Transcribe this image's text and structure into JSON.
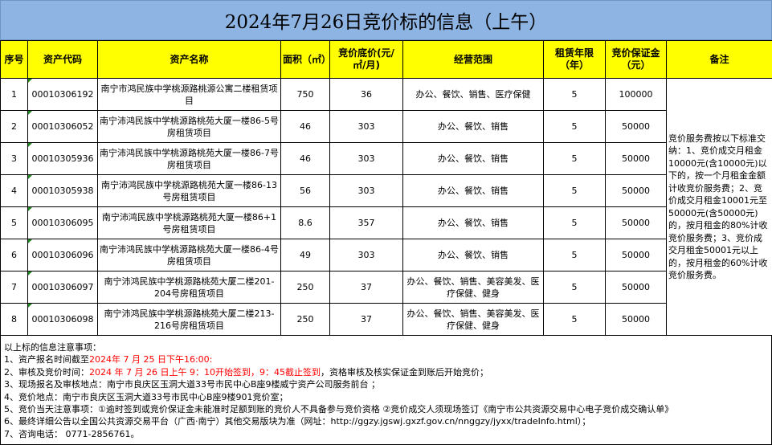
{
  "title": "2024年7月26日竞价标的信息（上午）",
  "headers": [
    "序号",
    "资产代码",
    "资产名称",
    "面积（㎡）",
    "竞价底价(元/㎡/月)",
    "经营范围",
    "租赁年限（年）",
    "竞价保证金（元）",
    "备注"
  ],
  "rows": [
    {
      "no": "1",
      "code": "00010306192",
      "name": "南宁市鸿民族中学桃源路桃源公寓二楼租赁项目",
      "area": "750",
      "price": "36",
      "scope": "办公、餐饮、销售、医疗保健",
      "years": "5",
      "deposit": "100000"
    },
    {
      "no": "2",
      "code": "00010306052",
      "name": "南宁沛鸿民族中学桃源路桃苑大厦一楼86-5号房租赁项目",
      "area": "46",
      "price": "303",
      "scope": "办公、餐饮、销售",
      "years": "5",
      "deposit": "50000"
    },
    {
      "no": "3",
      "code": "00010305936",
      "name": "南宁沛鸿民族中学桃源路桃苑大厦一楼86-7号房租赁项目",
      "area": "46",
      "price": "303",
      "scope": "办公、餐饮、销售",
      "years": "5",
      "deposit": "50000"
    },
    {
      "no": "4",
      "code": "00010305938",
      "name": "南宁沛鸿民族中学桃源路桃苑大厦一楼86-13号房租赁项目",
      "area": "56",
      "price": "303",
      "scope": "办公、餐饮、销售",
      "years": "5",
      "deposit": "50000"
    },
    {
      "no": "5",
      "code": "00010306095",
      "name": "南宁沛鸿民族中学桃源路桃苑大厦一楼86+1号房租赁项目",
      "area": "8.6",
      "price": "357",
      "scope": "办公、餐饮、销售",
      "years": "5",
      "deposit": "50000"
    },
    {
      "no": "6",
      "code": "00010306096",
      "name": "南宁沛鸿民族中学桃源路桃苑大厦一楼86-4号房租赁项目",
      "area": "49",
      "price": "303",
      "scope": "办公、餐饮、销售",
      "years": "5",
      "deposit": "50000"
    },
    {
      "no": "7",
      "code": "00010306097",
      "name": "南宁沛鸿民族中学桃源路桃苑大厦二楼201-204号房租赁项目",
      "area": "250",
      "price": "37",
      "scope": "办公、餐饮、销售、美容美发、医疗保健、健身",
      "years": "5",
      "deposit": "50000"
    },
    {
      "no": "8",
      "code": "00010306098",
      "name": "南宁沛鸿民族中学桃源路桃苑大厦二楼213-216号房租赁项目",
      "area": "250",
      "price": "37",
      "scope": "办公、餐饮、销售、美容美发、医疗保健、健身",
      "years": "5",
      "deposit": "50000"
    }
  ],
  "remark": "竞价服务费按以下标准交纳：1、竞价成交月租金10000元(含10000元)以下的，按一个月租金金额计收竞价服务费；2、竞价成交月租金10001元至50000元(含50000元)的，按月租金的80%计收竞价服务费；3、竞价成交月租金50001元以上的，按月租金的60%计收竞价服务费。",
  "notes": {
    "heading": "以上标的信息注意事项：",
    "l1a": "1、资产报名时间截至",
    "l1b": "2024年 7 月 25 日下午16:00:",
    "l2a": "2、审核及竞价时间：",
    "l2b": "2024 年 7 月 26 日上午 9：10开始签到，9：45截止签到",
    "l2c": "，资格审核及核实保证金到账后开始竞价；",
    "l3": "3、现场报名及审核地点：南宁市良庆区玉洞大道33号市民中心B座9楼威宁资产公司服务前台 ；",
    "l4": "4、竞价地点：南宁市良庆区玉洞大道33号市民中心B座9楼901竞价室；",
    "l5": "5、竞价当天注意事项：①逾时签到或竞价保证金未能准时足额到账的竞价人不具备参与竞价资格 ②竞价成交人须现场签订《南宁市公共资源交易中心电子竞价成交确认单》",
    "l6": "6、最终详细公告以全国公共资源交易平台（广西·南宁）其他交易版块为准（网址：http://ggzy.jgswj.gxzf.gov.cn/nnggzy/jyxx/tradeInfo.html）；",
    "l7": "7、咨询电话： 0771-2856761。"
  },
  "colors": {
    "title_bg": "#8DB4E2",
    "header_bg": "#FFFF00",
    "highlight_text": "#FF0000"
  }
}
